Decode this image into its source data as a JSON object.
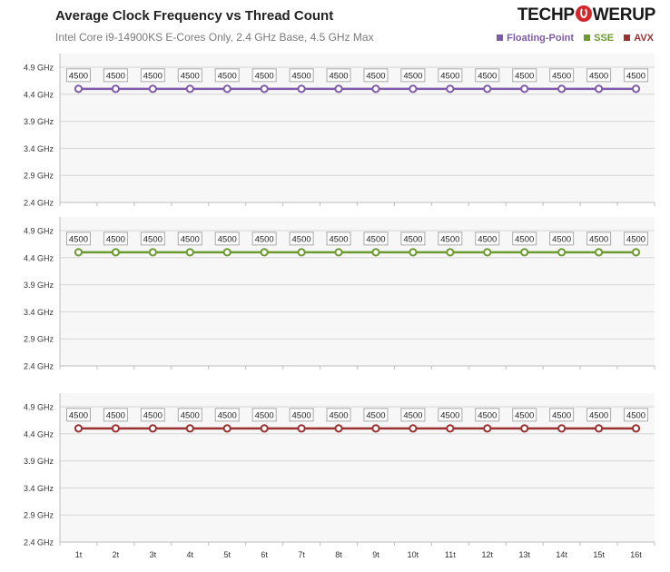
{
  "title": "Average Clock Frequency vs Thread Count",
  "subtitle": "Intel Core i9-14900KS E-Cores Only, 2.4 GHz Base, 4.5 GHz Max",
  "logo": {
    "part1": "TECHP",
    "part2": "WERUP"
  },
  "legend": [
    {
      "label": "Floating-Point",
      "color": "#7e5aa8"
    },
    {
      "label": "SSE",
      "color": "#6b9a2e"
    },
    {
      "label": "AVX",
      "color": "#9b3030"
    }
  ],
  "chart_data": {
    "type": "line",
    "categories": [
      "1t",
      "2t",
      "3t",
      "4t",
      "5t",
      "6t",
      "7t",
      "8t",
      "9t",
      "10t",
      "11t",
      "12t",
      "13t",
      "14t",
      "15t",
      "16t"
    ],
    "y_ticks": [
      2.4,
      2.9,
      3.4,
      3.9,
      4.4,
      4.9
    ],
    "y_tick_labels": [
      "2.4 GHz",
      "2.9 GHz",
      "3.4 GHz",
      "3.9 GHz",
      "4.4 GHz",
      "4.9 GHz"
    ],
    "ylim": [
      2.4,
      4.9
    ],
    "grid": true,
    "legend_position": "top-right",
    "panels": [
      {
        "series": "Floating-Point",
        "color": "#7e5aa8",
        "values": [
          4500,
          4500,
          4500,
          4500,
          4500,
          4500,
          4500,
          4500,
          4500,
          4500,
          4500,
          4500,
          4500,
          4500,
          4500,
          4500
        ]
      },
      {
        "series": "SSE",
        "color": "#6b9a2e",
        "values": [
          4500,
          4500,
          4500,
          4500,
          4500,
          4500,
          4500,
          4500,
          4500,
          4500,
          4500,
          4500,
          4500,
          4500,
          4500,
          4500
        ]
      },
      {
        "series": "AVX",
        "color": "#9b3030",
        "values": [
          4500,
          4500,
          4500,
          4500,
          4500,
          4500,
          4500,
          4500,
          4500,
          4500,
          4500,
          4500,
          4500,
          4500,
          4500,
          4500
        ]
      }
    ]
  }
}
